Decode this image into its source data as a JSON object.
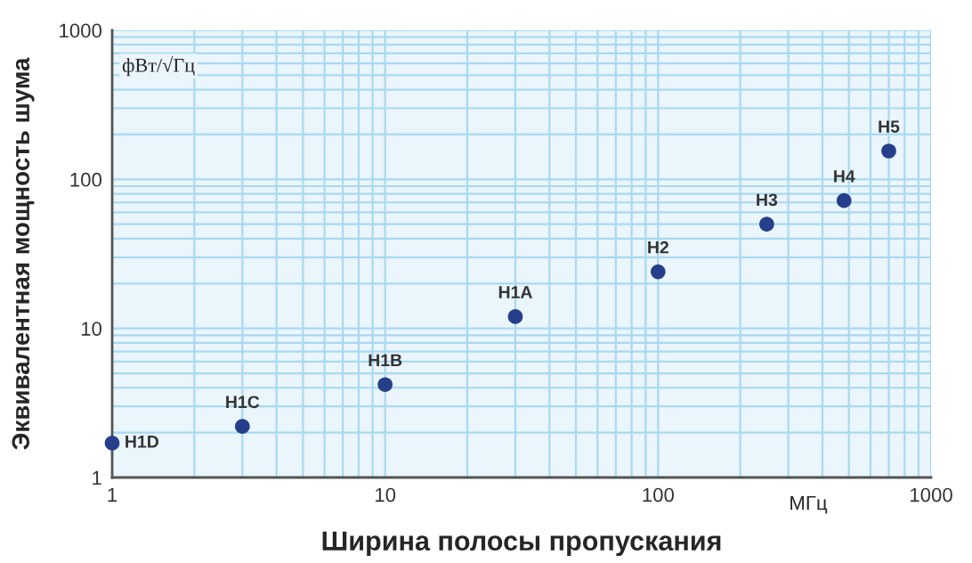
{
  "chart_data": {
    "type": "scatter",
    "xlabel": "Ширина полосы пропускания",
    "ylabel": "Эквивалентная мощность шума",
    "x": [
      1,
      3,
      10,
      30,
      100,
      250,
      480,
      700
    ],
    "series": [
      {
        "color": "#253f8a",
        "values": [
          1.7,
          2.2,
          4.2,
          12,
          24,
          50,
          72,
          155
        ]
      }
    ],
    "log": "xy",
    "marker": "circle",
    "grid": true,
    "xlim": [
      1,
      1000
    ],
    "ylim": [
      1,
      1000
    ],
    "xticks": [
      1,
      10,
      100,
      1000
    ],
    "yticks": [
      1,
      10,
      100,
      1000
    ],
    "annotations": [
      "фВт/√Гц",
      "МГц",
      {
        "text": "H1D",
        "x": 1,
        "y": 1.7
      },
      {
        "text": "H1C",
        "x": 3,
        "y": 2.2
      },
      {
        "text": "H1B",
        "x": 10,
        "y": 4.2
      },
      {
        "text": "H1A",
        "x": 30,
        "y": 12
      },
      {
        "text": "H2",
        "x": 100,
        "y": 24
      },
      {
        "text": "H3",
        "x": 250,
        "y": 50
      },
      {
        "text": "H4",
        "x": 480,
        "y": 72
      },
      {
        "text": "H5",
        "x": 700,
        "y": 155
      }
    ]
  }
}
